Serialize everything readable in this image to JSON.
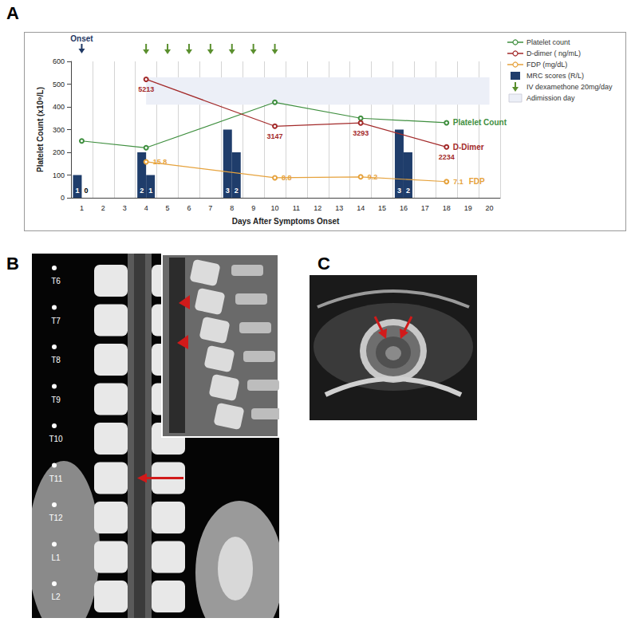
{
  "panel_labels": [
    "A",
    "B",
    "C"
  ],
  "chart_data": {
    "type": "line",
    "x_label": "Days After Symptoms Onset",
    "y_label": "Platelet Count (x10⁹/L)",
    "categories": [
      "1",
      "2",
      "3",
      "4",
      "5",
      "6",
      "7",
      "8",
      "9",
      "10",
      "11",
      "12",
      "13",
      "14",
      "15",
      "16",
      "17",
      "18",
      "19",
      "20"
    ],
    "ylim": [
      0,
      600
    ],
    "yticks": [
      0,
      100,
      200,
      300,
      400,
      500,
      600
    ],
    "y2lim": [
      0,
      6000
    ],
    "y3lim": [
      0,
      60
    ],
    "y4lim": [
      0,
      6
    ],
    "grid": true,
    "series": [
      {
        "name": "Platelet count",
        "end_label": "Platelet Count",
        "color": "#3f8f3f",
        "marker": "circle",
        "values": [
          250,
          null,
          null,
          220,
          null,
          null,
          null,
          null,
          null,
          420,
          null,
          null,
          null,
          350,
          null,
          null,
          null,
          330,
          null,
          null
        ]
      },
      {
        "name": "D-dimer ( ng/mL)",
        "end_label": "D-Dimer",
        "color": "#a32a2a",
        "marker": "circle",
        "axis": "y2",
        "data_labels": true,
        "values": [
          null,
          null,
          null,
          5213,
          null,
          null,
          null,
          null,
          null,
          3147,
          null,
          null,
          null,
          3293,
          null,
          null,
          null,
          2234,
          null,
          null
        ]
      },
      {
        "name": "FDP (mg/dL)",
        "end_label": "FDP",
        "color": "#e6a23c",
        "marker": "circle",
        "axis": "y3",
        "data_labels": true,
        "values": [
          null,
          null,
          null,
          15.8,
          null,
          null,
          null,
          null,
          null,
          8.8,
          null,
          null,
          null,
          9.2,
          null,
          null,
          null,
          7.1,
          null,
          null
        ]
      },
      {
        "name": "MRC scores (R/L)",
        "type": "bar",
        "axis": "y4",
        "color": "#1f3d6b",
        "data_labels": true,
        "values": [
          [
            1,
            0
          ],
          null,
          null,
          [
            2,
            1
          ],
          null,
          null,
          null,
          [
            3,
            2
          ],
          null,
          null,
          null,
          null,
          null,
          null,
          null,
          [
            3,
            2
          ],
          null,
          null,
          null,
          null
        ]
      }
    ],
    "markers": [
      {
        "name": "IV dexamethone 20mg/day",
        "type": "arrow",
        "color": "#5a8f2e",
        "x": [
          "4",
          "5",
          "6",
          "7",
          "8",
          "9",
          "10"
        ]
      }
    ],
    "bands": [
      {
        "name": "Adimission day",
        "color": "#eceff7",
        "x": [
          "4",
          "20"
        ],
        "y": [
          410,
          530
        ]
      }
    ],
    "annotations": [
      {
        "text": "Onset",
        "x": "1",
        "color": "#1f3864"
      }
    ]
  },
  "panel_b": {
    "vertebra_labels": [
      "T6",
      "T7",
      "T8",
      "T9",
      "T10",
      "T11",
      "T12",
      "L1",
      "L2"
    ]
  }
}
